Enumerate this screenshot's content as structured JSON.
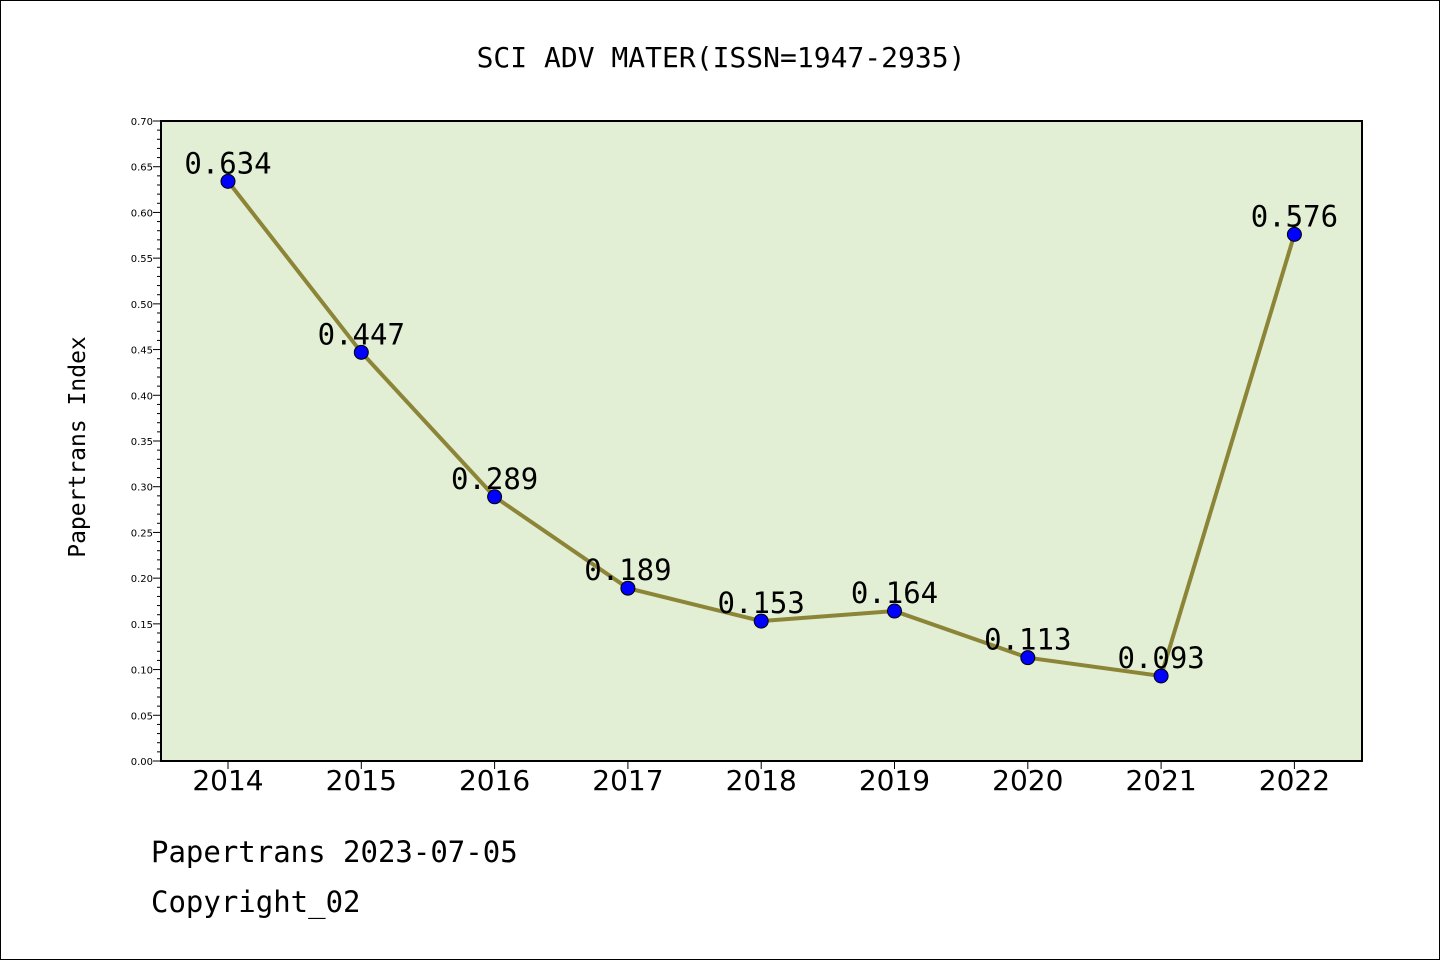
{
  "chart_data": {
    "type": "line",
    "title": "SCI ADV MATER(ISSN=1947-2935)",
    "ylabel": "Papertrans Index",
    "xlabel": "",
    "categories": [
      "2014",
      "2015",
      "2016",
      "2017",
      "2018",
      "2019",
      "2020",
      "2021",
      "2022"
    ],
    "values": [
      0.634,
      0.447,
      0.289,
      0.189,
      0.153,
      0.164,
      0.113,
      0.093,
      0.576
    ],
    "data_labels": [
      "0.634",
      "0.447",
      "0.289",
      "0.189",
      "0.153",
      "0.164",
      "0.113",
      "0.093",
      "0.576"
    ],
    "ylim": [
      0.0,
      0.7
    ],
    "yticks": [
      "0.00",
      "0.05",
      "0.10",
      "0.15",
      "0.20",
      "0.25",
      "0.30",
      "0.35",
      "0.40",
      "0.45",
      "0.50",
      "0.55",
      "0.60",
      "0.65",
      "0.70"
    ],
    "grid": false,
    "legend": "none",
    "colors": {
      "plot_background": "#e2efd4",
      "line": "#8c8538",
      "marker": "#0000ff"
    }
  },
  "footer": {
    "line1": "Papertrans 2023-07-05",
    "line2": "Copyright_02"
  }
}
